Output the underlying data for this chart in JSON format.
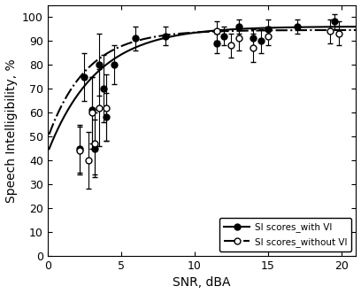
{
  "with_vi": {
    "x": [
      2.2,
      2.5,
      3.0,
      3.2,
      3.5,
      3.8,
      4.0,
      4.5,
      6.0,
      8.0,
      11.5,
      12.0,
      13.0,
      14.0,
      14.5,
      15.0,
      17.0,
      19.5
    ],
    "y": [
      45,
      75,
      61,
      45,
      80,
      70,
      58,
      80,
      91,
      92,
      89,
      92,
      96,
      91,
      90,
      95,
      96,
      98
    ],
    "yerr": [
      10,
      10,
      14,
      12,
      13,
      14,
      10,
      8,
      5,
      4,
      4,
      4,
      3,
      4,
      5,
      4,
      3,
      3
    ]
  },
  "without_vi": {
    "x": [
      2.2,
      2.8,
      3.0,
      3.2,
      3.5,
      4.0,
      11.5,
      12.5,
      13.0,
      14.0,
      15.0,
      19.2,
      19.8
    ],
    "y": [
      44,
      40,
      60,
      47,
      62,
      62,
      94,
      88,
      91,
      87,
      92,
      94,
      93
    ],
    "yerr": [
      10,
      12,
      15,
      13,
      16,
      14,
      4,
      5,
      5,
      6,
      4,
      5,
      5
    ]
  },
  "fit_with_vi": {
    "a": 96.0,
    "b": 0.55,
    "c": 0.3
  },
  "fit_without_vi": {
    "a": 94.5,
    "b": 0.48,
    "c": 0.38
  },
  "xlim": [
    0,
    21
  ],
  "ylim": [
    0,
    105
  ],
  "xticks": [
    0,
    5,
    10,
    15,
    20
  ],
  "yticks": [
    0,
    10,
    20,
    30,
    40,
    50,
    60,
    70,
    80,
    90,
    100
  ],
  "xlabel": "SNR, dBA",
  "ylabel": "Speech Intelligibility, %",
  "legend_labels": [
    "SI scores_with VI",
    "SI scores_without VI"
  ],
  "line_color": "black",
  "figsize": [
    4.08,
    3.32
  ],
  "dpi": 100
}
